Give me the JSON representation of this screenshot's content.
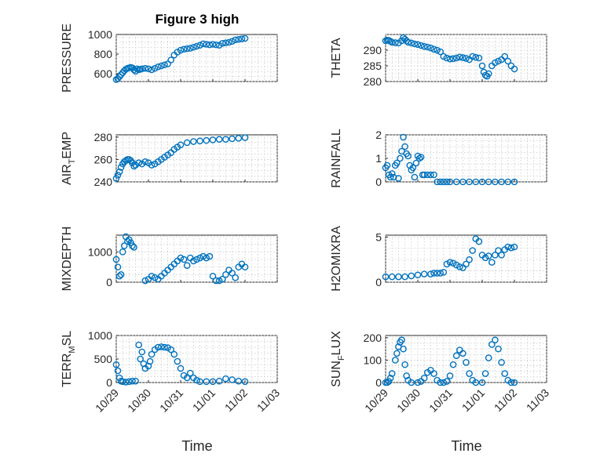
{
  "figure_title": "Figure 3 high",
  "xlabels": [
    "Time",
    "Time"
  ],
  "chart_data": [
    {
      "id": "pressure",
      "type": "scatter",
      "ylabel": "PRESSURE",
      "ylim": [
        520,
        1000
      ],
      "yticks": [
        600,
        800,
        1000
      ],
      "xlim": [
        0,
        5
      ],
      "x": [
        0,
        0.05,
        0.1,
        0.15,
        0.2,
        0.25,
        0.3,
        0.35,
        0.4,
        0.45,
        0.5,
        0.55,
        0.6,
        0.65,
        0.7,
        0.75,
        0.8,
        0.9,
        1.0,
        1.1,
        1.2,
        1.3,
        1.4,
        1.5,
        1.6,
        1.7,
        1.8,
        1.9,
        2.0,
        2.1,
        2.2,
        2.3,
        2.4,
        2.5,
        2.6,
        2.7,
        2.8,
        2.9,
        3.0,
        3.1,
        3.2,
        3.3,
        3.4,
        3.5,
        3.6,
        3.7,
        3.8,
        3.9,
        4.0
      ],
      "y": [
        540,
        550,
        570,
        590,
        610,
        630,
        645,
        655,
        660,
        665,
        660,
        640,
        625,
        650,
        640,
        645,
        650,
        655,
        650,
        640,
        655,
        670,
        680,
        690,
        700,
        740,
        790,
        820,
        840,
        850,
        855,
        860,
        870,
        880,
        890,
        905,
        900,
        895,
        900,
        895,
        890,
        910,
        915,
        920,
        930,
        945,
        950,
        955,
        960
      ]
    },
    {
      "id": "theta",
      "type": "scatter",
      "ylabel": "THETA",
      "ylim": [
        280,
        295
      ],
      "yticks": [
        280,
        285,
        290
      ],
      "xlim": [
        0,
        5
      ],
      "x": [
        0,
        0.05,
        0.1,
        0.15,
        0.2,
        0.3,
        0.4,
        0.5,
        0.55,
        0.6,
        0.65,
        0.7,
        0.8,
        0.9,
        1.0,
        1.1,
        1.2,
        1.3,
        1.4,
        1.5,
        1.6,
        1.7,
        1.8,
        1.9,
        2.0,
        2.1,
        2.2,
        2.3,
        2.4,
        2.5,
        2.6,
        2.7,
        2.8,
        2.9,
        3.0,
        3.05,
        3.1,
        3.15,
        3.2,
        3.3,
        3.4,
        3.5,
        3.6,
        3.7,
        3.8,
        3.9,
        4.0
      ],
      "y": [
        293,
        293.2,
        293.1,
        292.8,
        292.5,
        292.4,
        292.3,
        293,
        294,
        293.5,
        293,
        292.5,
        292.3,
        292,
        291.8,
        291.5,
        291.2,
        291,
        290.7,
        290.3,
        290,
        289.5,
        288,
        287.5,
        287.2,
        287.3,
        287.5,
        287.8,
        287.6,
        287.4,
        287,
        288,
        287.7,
        287.5,
        285,
        283,
        282,
        281.7,
        282.5,
        285,
        286,
        286.5,
        287,
        288,
        286.5,
        285,
        284
      ]
    },
    {
      "id": "air_temp",
      "type": "scatter",
      "ylabel": "AIR_TEMP",
      "ylim": [
        240,
        282
      ],
      "yticks": [
        240,
        260,
        280
      ],
      "xlim": [
        0,
        5
      ],
      "x": [
        0,
        0.05,
        0.1,
        0.15,
        0.2,
        0.25,
        0.3,
        0.35,
        0.4,
        0.45,
        0.5,
        0.55,
        0.6,
        0.7,
        0.8,
        0.9,
        1.0,
        1.1,
        1.2,
        1.3,
        1.4,
        1.5,
        1.6,
        1.7,
        1.8,
        1.9,
        2.0,
        2.2,
        2.4,
        2.6,
        2.8,
        3.0,
        3.2,
        3.4,
        3.6,
        3.8,
        4.0
      ],
      "y": [
        243,
        246,
        249,
        253,
        256,
        258,
        259,
        260,
        260,
        259,
        257,
        254,
        255,
        257,
        256,
        258,
        257,
        255,
        256,
        258,
        260,
        262,
        264,
        266,
        269,
        271,
        273,
        275,
        276,
        276.5,
        277,
        277.5,
        278,
        278,
        278.5,
        279,
        279.5
      ]
    },
    {
      "id": "rainfall",
      "type": "scatter",
      "ylabel": "RAINFALL",
      "ylim": [
        0,
        2
      ],
      "yticks": [
        0,
        1,
        2
      ],
      "xlim": [
        0,
        5
      ],
      "x": [
        0,
        0.05,
        0.1,
        0.15,
        0.2,
        0.25,
        0.3,
        0.35,
        0.4,
        0.45,
        0.5,
        0.55,
        0.6,
        0.65,
        0.7,
        0.75,
        0.8,
        0.85,
        0.9,
        0.95,
        1.0,
        1.05,
        1.1,
        1.15,
        1.2,
        1.3,
        1.4,
        1.5,
        1.6,
        1.7,
        1.8,
        1.9,
        2.0,
        2.2,
        2.4,
        2.6,
        2.8,
        3.0,
        3.2,
        3.4,
        3.6,
        3.8,
        4.0
      ],
      "y": [
        0.6,
        0.7,
        0.3,
        0.2,
        0.35,
        0.2,
        0.7,
        0.8,
        0.15,
        1.0,
        1.3,
        1.9,
        1.5,
        1.2,
        1.1,
        0.7,
        0.5,
        0.6,
        0.2,
        0.8,
        1.1,
        1.0,
        1.05,
        0.3,
        0.3,
        0.3,
        0.3,
        0.3,
        0.0,
        0.0,
        0.0,
        0.0,
        0.0,
        0.0,
        0.0,
        0.0,
        0.0,
        0.0,
        0.0,
        0.0,
        0.0,
        0.0,
        0.0
      ]
    },
    {
      "id": "mixdepth",
      "type": "scatter",
      "ylabel": "MIXDEPTH",
      "ylim": [
        0,
        1550
      ],
      "yticks": [
        0,
        1000
      ],
      "xlim": [
        0,
        5
      ],
      "x": [
        0,
        0.05,
        0.1,
        0.15,
        0.2,
        0.25,
        0.3,
        0.35,
        0.4,
        0.45,
        0.5,
        0.55,
        0.9,
        1.0,
        1.1,
        1.2,
        1.3,
        1.4,
        1.5,
        1.6,
        1.7,
        1.8,
        1.9,
        2.0,
        2.1,
        2.2,
        2.3,
        2.4,
        2.5,
        2.6,
        2.7,
        2.8,
        2.9,
        3.0,
        3.1,
        3.2,
        3.3,
        3.4,
        3.5,
        3.6,
        3.7,
        3.8,
        3.9,
        4.0
      ],
      "y": [
        750,
        500,
        200,
        250,
        1000,
        1200,
        1500,
        1350,
        1400,
        1300,
        1200,
        1150,
        50,
        100,
        200,
        150,
        100,
        200,
        300,
        400,
        500,
        600,
        700,
        800,
        750,
        550,
        800,
        700,
        750,
        800,
        850,
        800,
        850,
        200,
        50,
        50,
        100,
        250,
        400,
        300,
        150,
        500,
        600,
        500
      ]
    },
    {
      "id": "h2omixra",
      "type": "scatter",
      "ylabel": "H2OMIXRA",
      "ylim": [
        0,
        5.2
      ],
      "yticks": [
        0,
        5
      ],
      "xlim": [
        0,
        5
      ],
      "x": [
        0,
        0.2,
        0.4,
        0.6,
        0.8,
        1.0,
        1.2,
        1.4,
        1.5,
        1.6,
        1.7,
        1.8,
        1.9,
        2.0,
        2.1,
        2.2,
        2.3,
        2.4,
        2.5,
        2.6,
        2.7,
        2.8,
        2.9,
        3.0,
        3.1,
        3.2,
        3.3,
        3.4,
        3.5,
        3.6,
        3.7,
        3.8,
        3.9,
        4.0
      ],
      "y": [
        0.6,
        0.6,
        0.6,
        0.6,
        0.7,
        0.8,
        0.9,
        0.9,
        1.0,
        1.0,
        1.0,
        1.1,
        2.0,
        2.2,
        2.1,
        1.9,
        1.7,
        1.6,
        2.0,
        2.5,
        3.5,
        4.8,
        4.5,
        3.0,
        2.7,
        2.9,
        2.2,
        3.0,
        3.5,
        3.0,
        3.6,
        3.9,
        3.8,
        3.9
      ]
    },
    {
      "id": "terr_msl",
      "type": "scatter",
      "ylabel": "TERR_MSL",
      "ylim": [
        0,
        1000
      ],
      "yticks": [
        0,
        500,
        1000
      ],
      "xlim": [
        0,
        5
      ],
      "x": [
        0,
        0.05,
        0.1,
        0.15,
        0.2,
        0.3,
        0.4,
        0.5,
        0.6,
        0.7,
        0.75,
        0.8,
        0.85,
        0.9,
        1.0,
        1.05,
        1.1,
        1.2,
        1.3,
        1.4,
        1.5,
        1.6,
        1.7,
        1.8,
        1.9,
        2.0,
        2.1,
        2.2,
        2.3,
        2.4,
        2.5,
        2.6,
        2.8,
        3.0,
        3.2,
        3.4,
        3.6,
        3.8,
        4.0
      ],
      "y": [
        380,
        250,
        100,
        30,
        20,
        10,
        20,
        30,
        30,
        800,
        500,
        650,
        400,
        300,
        350,
        450,
        600,
        700,
        750,
        760,
        750,
        740,
        700,
        600,
        450,
        300,
        150,
        100,
        200,
        100,
        50,
        20,
        20,
        20,
        30,
        80,
        60,
        30,
        20
      ]
    },
    {
      "id": "sun_flux",
      "type": "scatter",
      "ylabel": "SUN_FLUX",
      "ylim": [
        0,
        210
      ],
      "yticks": [
        0,
        100,
        200
      ],
      "xlim": [
        0,
        5
      ],
      "x": [
        0,
        0.05,
        0.1,
        0.15,
        0.2,
        0.3,
        0.35,
        0.4,
        0.45,
        0.5,
        0.55,
        0.6,
        0.65,
        0.7,
        0.8,
        1.0,
        1.1,
        1.2,
        1.3,
        1.4,
        1.5,
        1.6,
        1.7,
        1.8,
        1.9,
        2.0,
        2.1,
        2.2,
        2.3,
        2.4,
        2.5,
        2.6,
        2.7,
        2.8,
        3.0,
        3.1,
        3.2,
        3.3,
        3.4,
        3.5,
        3.6,
        3.7,
        3.8,
        3.9,
        4.0
      ],
      "y": [
        0,
        0,
        5,
        20,
        40,
        100,
        130,
        160,
        180,
        190,
        150,
        80,
        30,
        10,
        0,
        0,
        5,
        20,
        45,
        55,
        40,
        10,
        0,
        0,
        5,
        30,
        80,
        120,
        145,
        130,
        90,
        40,
        10,
        0,
        0,
        40,
        110,
        170,
        190,
        150,
        90,
        40,
        10,
        0,
        0
      ]
    }
  ],
  "xticklabels": [
    "10/29",
    "10/30",
    "10/31",
    "11/01",
    "11/02",
    "11/03"
  ]
}
